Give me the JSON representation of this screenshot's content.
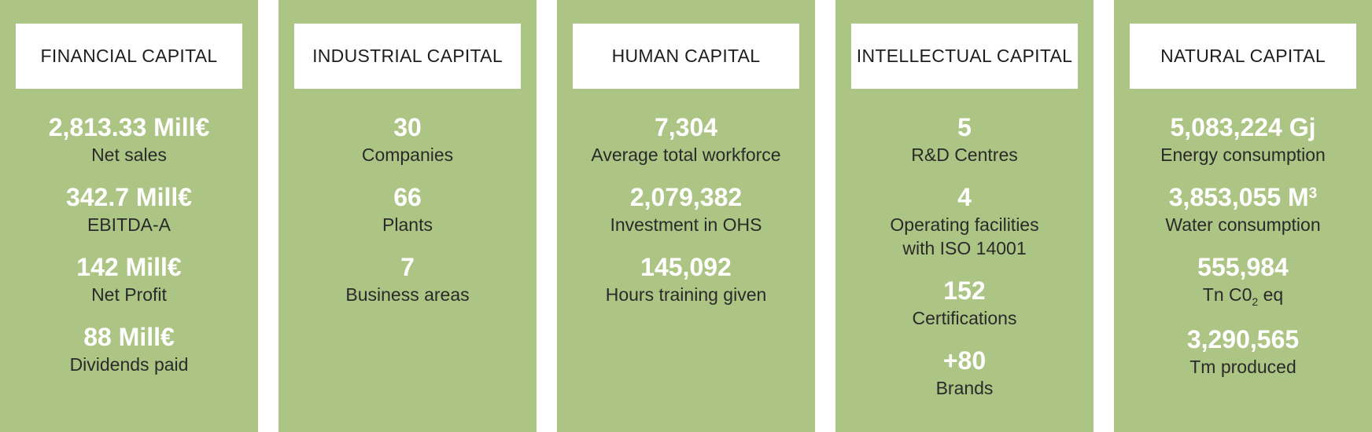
{
  "columns": [
    {
      "title": "FINANCIAL CAPITAL",
      "stats": [
        {
          "value": "2,813.33 Mill€",
          "label": "Net sales"
        },
        {
          "value": "342.7 Mill€",
          "label": "EBITDA-A"
        },
        {
          "value": "142 Mill€",
          "label": "Net Profit"
        },
        {
          "value": "88 Mill€",
          "label": "Dividends paid"
        }
      ]
    },
    {
      "title": "INDUSTRIAL CAPITAL",
      "stats": [
        {
          "value": "30",
          "label": "Companies"
        },
        {
          "value": "66",
          "label": "Plants"
        },
        {
          "value": "7",
          "label": "Business areas"
        }
      ]
    },
    {
      "title": "HUMAN CAPITAL",
      "stats": [
        {
          "value": "7,304",
          "label": "Average total workforce"
        },
        {
          "value": "2,079,382",
          "label": "Investment in OHS"
        },
        {
          "value": "145,092",
          "label": "Hours training given"
        }
      ]
    },
    {
      "title": "INTELLECTUAL CAPITAL",
      "stats": [
        {
          "value": "5",
          "label": "R&D Centres"
        },
        {
          "value": "4",
          "label": "Operating facilities",
          "label_line2": "with ISO 14001"
        },
        {
          "value": "152",
          "label": "Certifications"
        },
        {
          "value": "+80",
          "label": "Brands"
        }
      ]
    },
    {
      "title": "NATURAL CAPITAL",
      "stats": [
        {
          "value": "5,083,224 Gj",
          "label": "Energy consumption"
        },
        {
          "value": "3,853,055 M",
          "value_sup": "3",
          "label": "Water consumption"
        },
        {
          "value": "555,984",
          "label": "Tn C0",
          "label_sub": "2",
          "label_after": " eq"
        },
        {
          "value": "3,290,565",
          "label": "Tm produced"
        }
      ]
    }
  ],
  "colors": {
    "panel": "#adc584",
    "header_box": "#ffffff",
    "value_text": "#ffffff",
    "label_text": "#2a2a2a"
  }
}
